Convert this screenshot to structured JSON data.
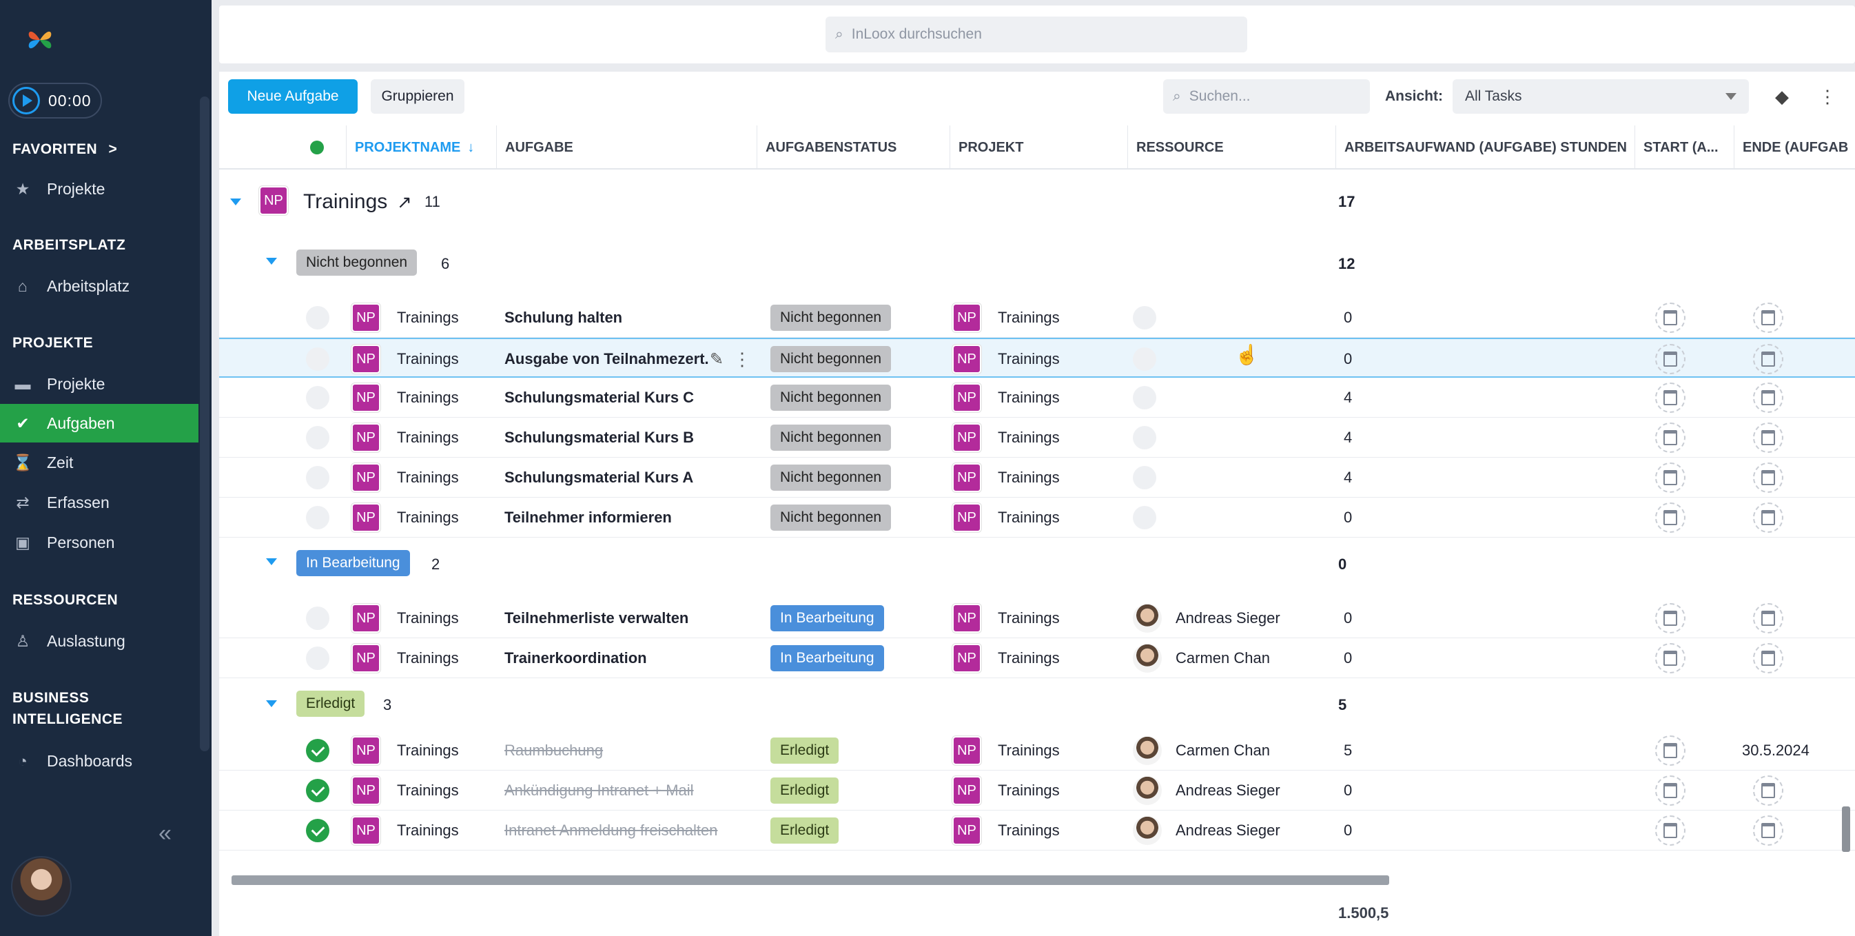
{
  "timer": "00:00",
  "sidebar": {
    "favoriten": "FAVORITEN",
    "favoriten_chevron": ">",
    "fav_projekte": "Projekte",
    "arbeitsplatz_heading": "ARBEITSPLATZ",
    "arbeitsplatz": "Arbeitsplatz",
    "projekte_heading": "PROJEKTE",
    "projekte": "Projekte",
    "aufgaben": "Aufgaben",
    "zeit": "Zeit",
    "erfassen": "Erfassen",
    "personen": "Personen",
    "ressourcen_heading": "RESSOURCEN",
    "auslastung": "Auslastung",
    "bi_heading_1": "BUSINESS",
    "bi_heading_2": "INTELLIGENCE",
    "dashboards": "Dashboards",
    "collapse": "«"
  },
  "global_search_placeholder": "InLoox durchsuchen",
  "toolbar": {
    "new_task": "Neue Aufgabe",
    "group": "Gruppieren",
    "search_placeholder": "Suchen...",
    "view_label": "Ansicht:",
    "view_value": "All Tasks"
  },
  "columns": {
    "projektname": "PROJEKTNAME",
    "aufgabe": "AUFGABE",
    "aufgabenstatus": "AUFGABENSTATUS",
    "projekt": "PROJEKT",
    "ressource": "RESSOURCE",
    "arbeitsaufwand": "ARBEITSAUFWAND (AUFGABE) STUNDEN",
    "start": "START (A...",
    "ende": "ENDE (AUFGAB"
  },
  "group": {
    "badge": "NP",
    "name": "Trainings",
    "count": "11",
    "total": "17"
  },
  "subgroups": {
    "nb": {
      "label": "Nicht begonnen",
      "count": "6",
      "total": "12"
    },
    "ib": {
      "label": "In Bearbeitung",
      "count": "2",
      "total": "0"
    },
    "er": {
      "label": "Erledigt",
      "count": "3",
      "total": "5"
    }
  },
  "rows": [
    {
      "project": "Trainings",
      "task": "Schulung halten",
      "status": "Nicht begonnen",
      "projekt": "Trainings",
      "resource": "",
      "hours": "0",
      "ende": ""
    },
    {
      "project": "Trainings",
      "task": "Ausgabe von Teilnahmezert...",
      "status": "Nicht begonnen",
      "projekt": "Trainings",
      "resource": "",
      "hours": "0",
      "ende": ""
    },
    {
      "project": "Trainings",
      "task": "Schulungsmaterial Kurs C",
      "status": "Nicht begonnen",
      "projekt": "Trainings",
      "resource": "",
      "hours": "4",
      "ende": ""
    },
    {
      "project": "Trainings",
      "task": "Schulungsmaterial Kurs B",
      "status": "Nicht begonnen",
      "projekt": "Trainings",
      "resource": "",
      "hours": "4",
      "ende": ""
    },
    {
      "project": "Trainings",
      "task": "Schulungsmaterial Kurs A",
      "status": "Nicht begonnen",
      "projekt": "Trainings",
      "resource": "",
      "hours": "4",
      "ende": ""
    },
    {
      "project": "Trainings",
      "task": "Teilnehmer informieren",
      "status": "Nicht begonnen",
      "projekt": "Trainings",
      "resource": "",
      "hours": "0",
      "ende": ""
    },
    {
      "project": "Trainings",
      "task": "Teilnehmerliste verwalten",
      "status": "In Bearbeitung",
      "projekt": "Trainings",
      "resource": "Andreas Sieger",
      "hours": "0",
      "ende": ""
    },
    {
      "project": "Trainings",
      "task": "Trainerkoordination",
      "status": "In Bearbeitung",
      "projekt": "Trainings",
      "resource": "Carmen Chan",
      "hours": "0",
      "ende": ""
    },
    {
      "project": "Trainings",
      "task": "Raumbuchung",
      "status": "Erledigt",
      "projekt": "Trainings",
      "resource": "Carmen Chan",
      "hours": "5",
      "ende": "30.5.2024"
    },
    {
      "project": "Trainings",
      "task": "Ankündigung Intranet + Mail",
      "status": "Erledigt",
      "projekt": "Trainings",
      "resource": "Andreas Sieger",
      "hours": "0",
      "ende": ""
    },
    {
      "project": "Trainings",
      "task": "Intranet Anmeldung freischalten",
      "status": "Erledigt",
      "projekt": "Trainings",
      "resource": "Andreas Sieger",
      "hours": "0",
      "ende": ""
    }
  ],
  "footer_total": "1.500,5",
  "colors": {
    "sidebar": "#1b2a3f",
    "accent": "#0fa0e6",
    "active": "#24a148",
    "badge": "#b32b9b"
  }
}
